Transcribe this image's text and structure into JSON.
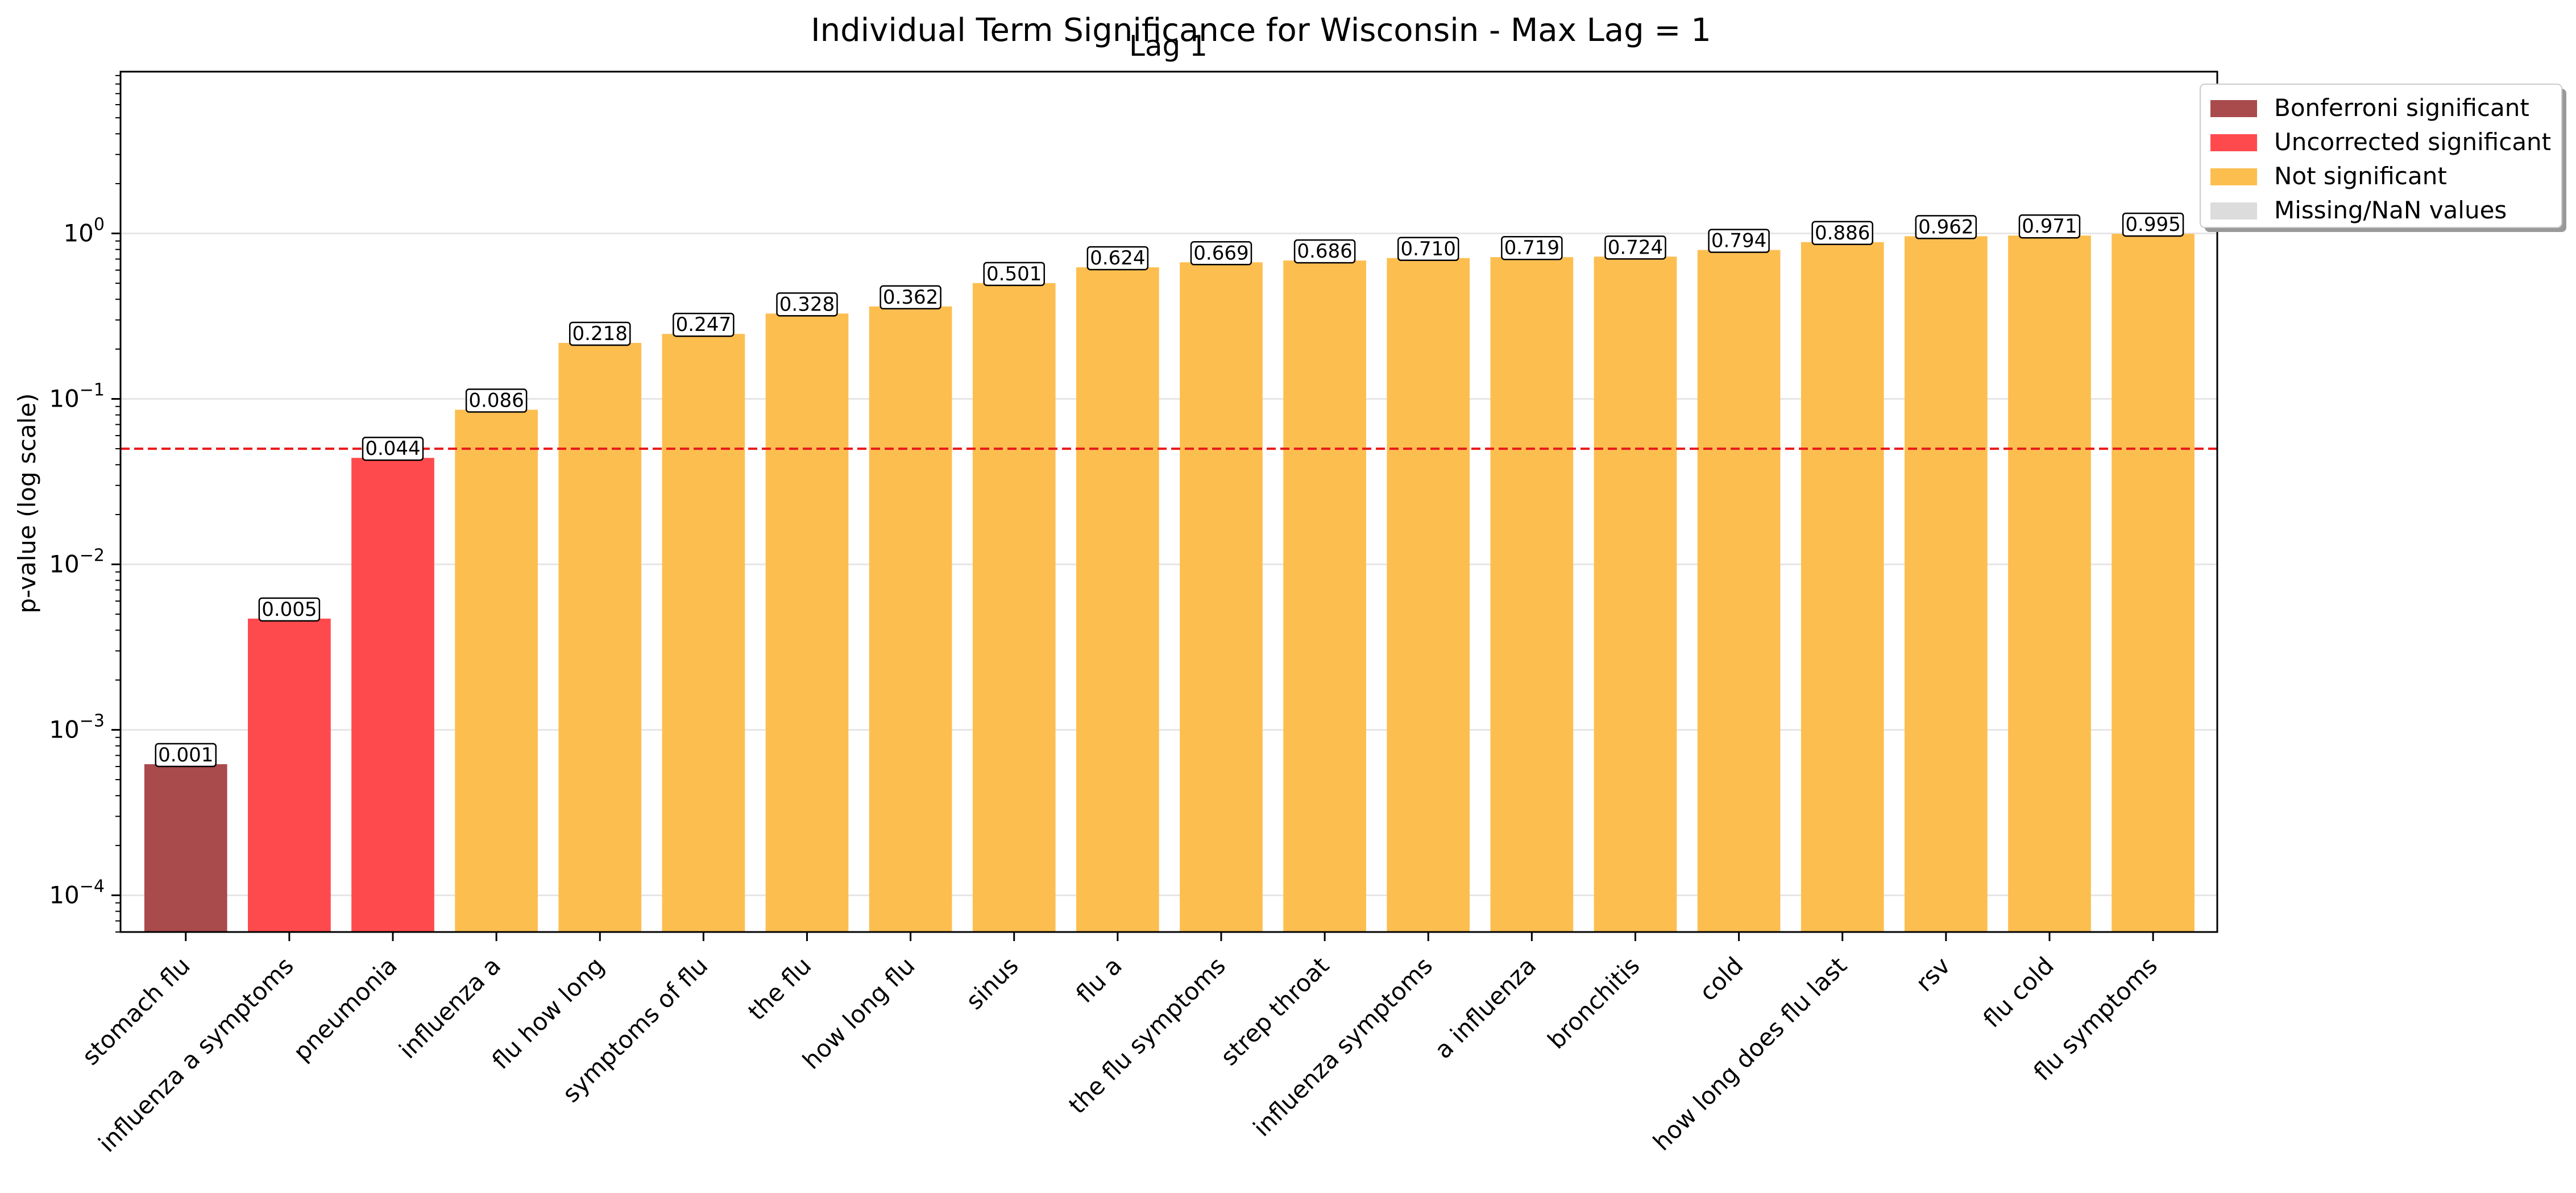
{
  "chart_data": {
    "type": "bar",
    "title": "Individual Term Significance for Wisconsin - Max Lag = 1",
    "subtitle": "Lag 1",
    "ylabel": "p-value (log scale)",
    "xlabel": "",
    "yscale": "log",
    "ylim": [
      6e-05,
      9.5
    ],
    "y_ticks": [
      {
        "value": 0.0001,
        "base": "10",
        "exp": "−4"
      },
      {
        "value": 0.001,
        "base": "10",
        "exp": "−3"
      },
      {
        "value": 0.01,
        "base": "10",
        "exp": "−2"
      },
      {
        "value": 0.1,
        "base": "10",
        "exp": "−1"
      },
      {
        "value": 1,
        "base": "10",
        "exp": "0"
      }
    ],
    "grid": "horizontal",
    "threshold_line": {
      "value": 0.05,
      "color": "#e8191b",
      "style": "dashed"
    },
    "categories": [
      "stomach flu",
      "influenza a symptoms",
      "pneumonia",
      "influenza a",
      "flu how long",
      "symptoms of flu",
      "the flu",
      "how long flu",
      "sinus",
      "flu a",
      "the flu symptoms",
      "strep throat",
      "influenza symptoms",
      "a influenza",
      "bronchitis",
      "cold",
      "how long does flu last",
      "rsv",
      "flu cold",
      "flu symptoms"
    ],
    "values": [
      0.00062,
      0.0047,
      0.044,
      0.086,
      0.218,
      0.247,
      0.328,
      0.362,
      0.501,
      0.624,
      0.669,
      0.686,
      0.71,
      0.719,
      0.724,
      0.794,
      0.886,
      0.962,
      0.971,
      0.995
    ],
    "value_labels": [
      "0.001",
      "0.005",
      "0.044",
      "0.086",
      "0.218",
      "0.247",
      "0.328",
      "0.362",
      "0.501",
      "0.624",
      "0.669",
      "0.686",
      "0.710",
      "0.719",
      "0.724",
      "0.794",
      "0.886",
      "0.962",
      "0.971",
      "0.995"
    ],
    "bar_status": [
      "bonferroni",
      "uncorrected",
      "uncorrected",
      "not",
      "not",
      "not",
      "not",
      "not",
      "not",
      "not",
      "not",
      "not",
      "not",
      "not",
      "not",
      "not",
      "not",
      "not",
      "not",
      "not"
    ],
    "colors": {
      "bonferroni": "#a94a4d",
      "uncorrected": "#ff4a4d",
      "not": "#fdbe50",
      "missing": "#dcdcdc"
    },
    "legend": {
      "position": "top-right",
      "entries": [
        {
          "label": "Bonferroni significant",
          "status": "bonferroni"
        },
        {
          "label": "Uncorrected significant",
          "status": "uncorrected"
        },
        {
          "label": "Not significant",
          "status": "not"
        },
        {
          "label": "Missing/NaN values",
          "status": "missing"
        }
      ]
    }
  }
}
